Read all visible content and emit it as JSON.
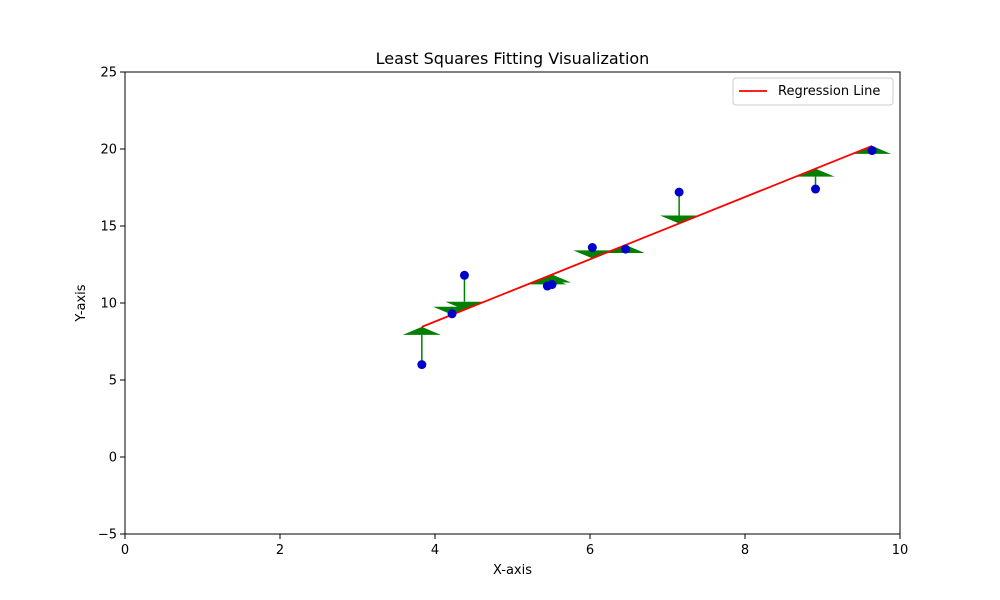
{
  "chart_data": {
    "type": "scatter",
    "title": "Least Squares Fitting Visualization",
    "xlabel": "X-axis",
    "ylabel": "Y-axis",
    "xlim": [
      0,
      10
    ],
    "ylim": [
      -5,
      25
    ],
    "xticks": [
      0,
      2,
      4,
      6,
      8,
      10
    ],
    "yticks": [
      -5,
      0,
      5,
      10,
      15,
      20,
      25
    ],
    "xtick_labels": [
      "0",
      "2",
      "4",
      "6",
      "8",
      "10"
    ],
    "ytick_labels": [
      "−5",
      "0",
      "5",
      "10",
      "15",
      "20",
      "25"
    ],
    "grid": false,
    "legend_placement": "top-right",
    "points": {
      "color": "#0000cc",
      "x": [
        3.83,
        4.22,
        4.38,
        5.45,
        5.51,
        6.03,
        6.46,
        7.15,
        8.91,
        9.64
      ],
      "y": [
        6.0,
        9.3,
        11.8,
        11.1,
        11.2,
        13.6,
        13.5,
        17.2,
        17.4,
        19.9
      ]
    },
    "regression_line": {
      "name": "Regression Line",
      "color": "#ff0000",
      "x": [
        3.83,
        9.64
      ],
      "y": [
        8.45,
        20.2
      ]
    },
    "residual_color": "#008000"
  }
}
